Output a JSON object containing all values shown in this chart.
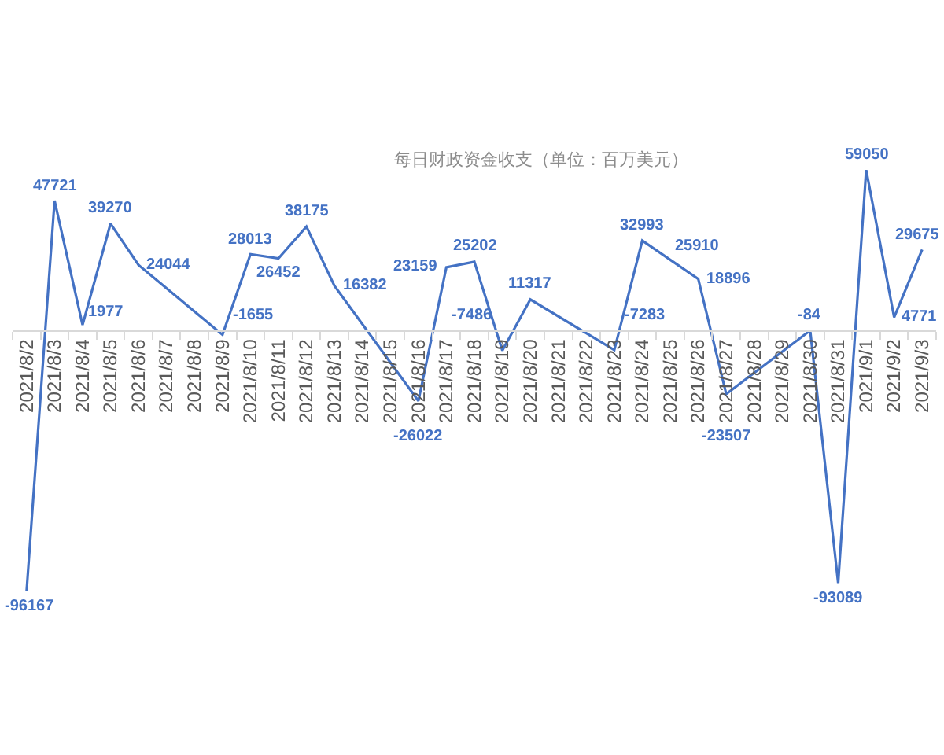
{
  "chart_data": {
    "type": "line",
    "title": "每日财政资金收支（单位：百万美元）",
    "x": [
      "2021-08-02",
      "2021-08-03",
      "2021-08-04",
      "2021-08-05",
      "2021-08-06",
      "2021-08-09",
      "2021-08-10",
      "2021-08-11",
      "2021-08-12",
      "2021-08-13",
      "2021-08-16",
      "2021-08-17",
      "2021-08-18",
      "2021-08-19",
      "2021-08-20",
      "2021-08-23",
      "2021-08-24",
      "2021-08-25",
      "2021-08-26",
      "2021-08-27",
      "2021-08-30",
      "2021-08-31",
      "2021-09-01",
      "2021-09-02",
      "2021-09-03"
    ],
    "series": [
      {
        "color": "#4472c4",
        "values": [
          -96167,
          47721,
          1977,
          39270,
          24044,
          -1655,
          28013,
          26452,
          38175,
          16382,
          -26022,
          23159,
          25202,
          -7486,
          11317,
          -7283,
          32993,
          25910,
          18896,
          -23507,
          -84,
          -93089,
          59050,
          4771,
          29675
        ]
      }
    ],
    "xlim": [
      "2021-08-01T12:00",
      "2021-09-03T12:00"
    ],
    "xticks": [
      {
        "value": "2021-08-02",
        "label": "2021/8/2"
      },
      {
        "value": "2021-08-03",
        "label": "2021/8/3"
      },
      {
        "value": "2021-08-04",
        "label": "2021/8/4"
      },
      {
        "value": "2021-08-05",
        "label": "2021/8/5"
      },
      {
        "value": "2021-08-06",
        "label": "2021/8/6"
      },
      {
        "value": "2021-08-07",
        "label": "2021/8/7"
      },
      {
        "value": "2021-08-08",
        "label": "2021/8/8"
      },
      {
        "value": "2021-08-09",
        "label": "2021/8/9"
      },
      {
        "value": "2021-08-10",
        "label": "2021/8/10"
      },
      {
        "value": "2021-08-11",
        "label": "2021/8/11"
      },
      {
        "value": "2021-08-12",
        "label": "2021/8/12"
      },
      {
        "value": "2021-08-13",
        "label": "2021/8/13"
      },
      {
        "value": "2021-08-14",
        "label": "2021/8/14"
      },
      {
        "value": "2021-08-15",
        "label": "2021/8/15"
      },
      {
        "value": "2021-08-16",
        "label": "2021/8/16"
      },
      {
        "value": "2021-08-17",
        "label": "2021/8/17"
      },
      {
        "value": "2021-08-18",
        "label": "2021/8/18"
      },
      {
        "value": "2021-08-19",
        "label": "2021/8/19"
      },
      {
        "value": "2021-08-20",
        "label": "2021/8/20"
      },
      {
        "value": "2021-08-21",
        "label": "2021/8/21"
      },
      {
        "value": "2021-08-22",
        "label": "2021/8/22"
      },
      {
        "value": "2021-08-23",
        "label": "2021/8/23"
      },
      {
        "value": "2021-08-24",
        "label": "2021/8/24"
      },
      {
        "value": "2021-08-25",
        "label": "2021/8/25"
      },
      {
        "value": "2021-08-26",
        "label": "2021/8/26"
      },
      {
        "value": "2021-08-27",
        "label": "2021/8/27"
      },
      {
        "value": "2021-08-28",
        "label": "2021/8/28"
      },
      {
        "value": "2021-08-29",
        "label": "2021/8/29"
      },
      {
        "value": "2021-08-30",
        "label": "2021/8/30"
      },
      {
        "value": "2021-08-31",
        "label": "2021/8/31"
      },
      {
        "value": "2021-09-01",
        "label": "2021/9/1"
      },
      {
        "value": "2021-09-02",
        "label": "2021/9/2"
      },
      {
        "value": "2021-09-03",
        "label": "2021/9/3"
      }
    ],
    "tick_labels": "x",
    "data_labels": true
  }
}
